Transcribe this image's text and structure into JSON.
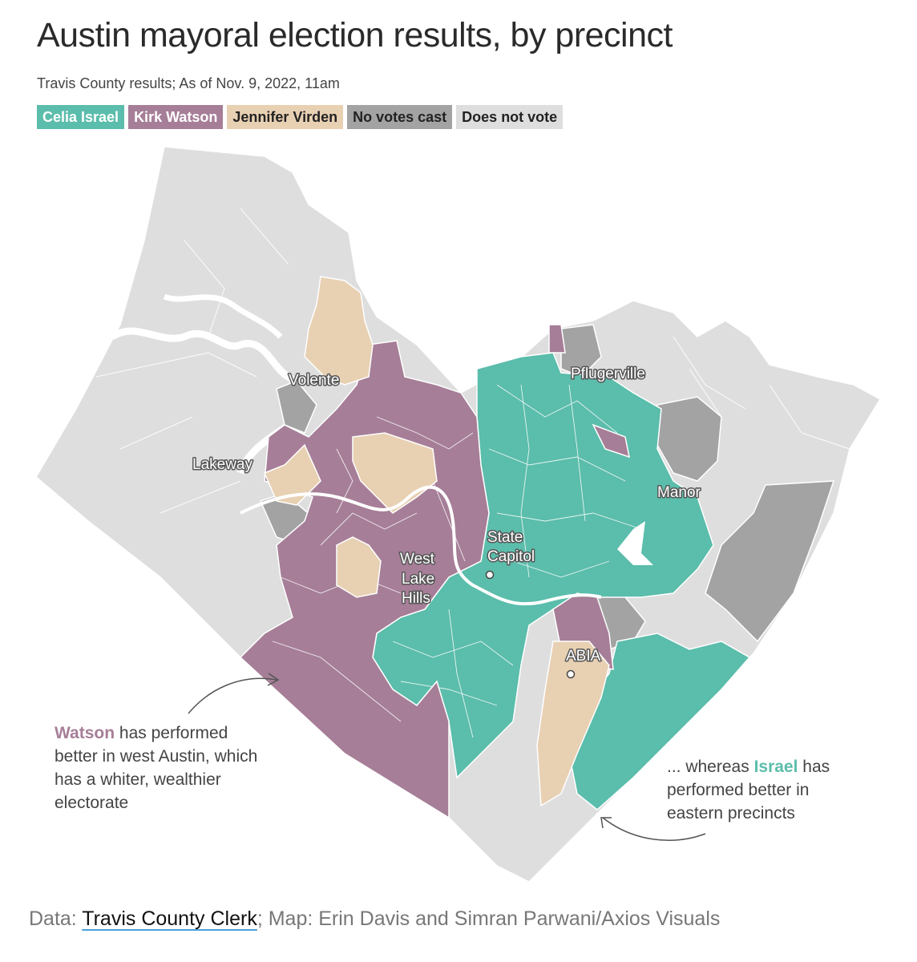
{
  "title": "Austin mayoral election results, by precinct",
  "subtitle": "Travis County results; As of Nov. 9, 2022, 11am",
  "legend": [
    {
      "label": "Celia Israel",
      "color": "#5bbdab",
      "text_color": "#ffffff"
    },
    {
      "label": "Kirk Watson",
      "color": "#a67e97",
      "text_color": "#ffffff"
    },
    {
      "label": "Jennifer Virden",
      "color": "#e8d0b3",
      "text_color": "#222222"
    },
    {
      "label": "No votes cast",
      "color": "#a3a3a3",
      "text_color": "#222222"
    },
    {
      "label": "Does not vote",
      "color": "#dedede",
      "text_color": "#222222"
    }
  ],
  "places": {
    "volente": "Volente",
    "lakeway": "Lakeway",
    "pflugerville": "Pflugerville",
    "manor": "Manor",
    "state_capitol": [
      "State",
      "Capitol"
    ],
    "west_lake_hills": [
      "West",
      "Lake",
      "Hills"
    ],
    "abia": "ABIA"
  },
  "annotations": {
    "west": {
      "highlight": "Watson",
      "highlight_color": "#a67e97",
      "text": " has performed better in west Austin, which has a whiter, wealthier electorate"
    },
    "east": {
      "prefix": "... whereas ",
      "highlight": "Israel",
      "highlight_color": "#5bbdab",
      "suffix": " has performed better in eastern precincts"
    }
  },
  "footer": {
    "prefix": "Data: ",
    "source_link": "Travis County Clerk",
    "suffix": "; Map: Erin Davis and Simran Parwani/Axios Visuals"
  }
}
